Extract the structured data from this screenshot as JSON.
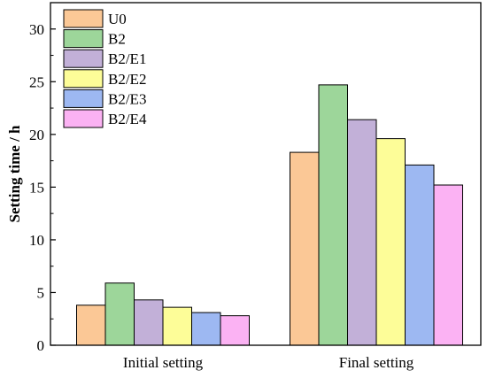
{
  "chart_data": {
    "type": "bar",
    "title": "",
    "xlabel": "",
    "ylabel": "Setting time / h",
    "ylim": [
      0,
      32.5
    ],
    "yticks": [
      0,
      5,
      10,
      15,
      20,
      25,
      30
    ],
    "grid": false,
    "legend_position": "top-left",
    "categories": [
      "Initial setting",
      "Final setting"
    ],
    "series": [
      {
        "name": "U0",
        "color": "#fbc896",
        "values": [
          3.8,
          18.3
        ]
      },
      {
        "name": "B2",
        "color": "#9dd69a",
        "values": [
          5.9,
          24.7
        ]
      },
      {
        "name": "B2/E1",
        "color": "#c2b0d8",
        "values": [
          4.3,
          21.4
        ]
      },
      {
        "name": "B2/E2",
        "color": "#fdfd98",
        "values": [
          3.6,
          19.6
        ]
      },
      {
        "name": "B2/E3",
        "color": "#9db8f2",
        "values": [
          3.1,
          17.1
        ]
      },
      {
        "name": "B2/E4",
        "color": "#fbb2f3",
        "values": [
          2.8,
          15.2
        ]
      }
    ]
  }
}
